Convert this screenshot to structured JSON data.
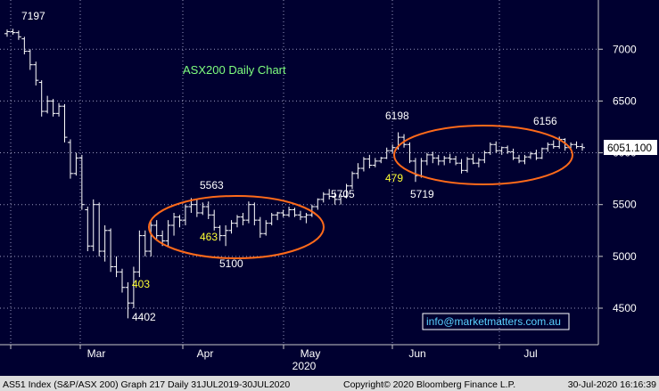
{
  "chart_data": {
    "type": "bar",
    "subtype": "ohlc",
    "title": "ASX200 Daily Chart",
    "x_ticks": [
      "Mar",
      "Apr",
      "May",
      "Jun",
      "Jul"
    ],
    "x_year": "2020",
    "y_ticks": [
      4500,
      5000,
      5500,
      6000,
      6500,
      7000
    ],
    "ylim": [
      4250,
      7400
    ],
    "grid": true,
    "last_price": "6051.100",
    "watermark": "info@marketmatters.com.au",
    "footer": {
      "left": "AS51 Index (S&P/ASX 200) Graph 217  Daily 31JUL2019-30JUL2020",
      "center": "Copyright© 2020 Bloomberg Finance L.P.",
      "right": "30-Jul-2020 16:16:39"
    },
    "annotations": [
      {
        "text": "7197",
        "color": "#ffffff"
      },
      {
        "text": "4402",
        "color": "#ffffff"
      },
      {
        "text": "403",
        "color": "#ffff33"
      },
      {
        "text": "5563",
        "color": "#ffffff"
      },
      {
        "text": "463",
        "color": "#ffff33"
      },
      {
        "text": "5100",
        "color": "#ffffff"
      },
      {
        "text": "5705",
        "color": "#ffffff"
      },
      {
        "text": "6198",
        "color": "#ffffff"
      },
      {
        "text": "479",
        "color": "#ffff33"
      },
      {
        "text": "5719",
        "color": "#ffffff"
      },
      {
        "text": "6156",
        "color": "#ffffff"
      }
    ],
    "series": [
      {
        "values": [
          [
            7150,
            7190,
            7120,
            7170
          ],
          [
            7170,
            7197,
            7140,
            7160
          ],
          [
            7160,
            7180,
            7090,
            7120
          ],
          [
            7100,
            7120,
            6950,
            6980
          ],
          [
            6980,
            7000,
            6800,
            6850
          ],
          [
            6850,
            6880,
            6650,
            6700
          ],
          [
            6680,
            6700,
            6350,
            6400
          ],
          [
            6400,
            6550,
            6380,
            6500
          ],
          [
            6500,
            6520,
            6350,
            6380
          ],
          [
            6380,
            6480,
            6350,
            6450
          ],
          [
            6450,
            6470,
            6100,
            6150
          ],
          [
            6100,
            6130,
            5750,
            5800
          ],
          [
            5800,
            6000,
            5780,
            5950
          ],
          [
            5950,
            5980,
            5450,
            5500
          ],
          [
            5450,
            5480,
            5050,
            5100
          ],
          [
            5100,
            5550,
            5050,
            5500
          ],
          [
            5500,
            5520,
            5000,
            5050
          ],
          [
            5050,
            5300,
            4950,
            5250
          ],
          [
            5250,
            5270,
            4850,
            4900
          ],
          [
            4900,
            5000,
            4800,
            4850
          ],
          [
            4850,
            4880,
            4650,
            4700
          ],
          [
            4700,
            4750,
            4402,
            4550
          ],
          [
            4550,
            4900,
            4500,
            4850
          ],
          [
            4850,
            5250,
            4800,
            5200
          ],
          [
            5200,
            5250,
            5000,
            5050
          ],
          [
            5050,
            5350,
            5000,
            5300
          ],
          [
            5300,
            5350,
            5150,
            5200
          ],
          [
            5200,
            5250,
            5100,
            5150
          ],
          [
            5150,
            5350,
            5100,
            5300
          ],
          [
            5300,
            5420,
            5200,
            5380
          ],
          [
            5380,
            5400,
            5280,
            5350
          ],
          [
            5350,
            5500,
            5300,
            5480
          ],
          [
            5480,
            5563,
            5420,
            5500
          ],
          [
            5500,
            5550,
            5380,
            5420
          ],
          [
            5420,
            5520,
            5400,
            5480
          ],
          [
            5480,
            5530,
            5360,
            5400
          ],
          [
            5400,
            5450,
            5250,
            5280
          ],
          [
            5280,
            5300,
            5150,
            5200
          ],
          [
            5200,
            5300,
            5100,
            5250
          ],
          [
            5250,
            5350,
            5220,
            5320
          ],
          [
            5320,
            5400,
            5280,
            5380
          ],
          [
            5380,
            5420,
            5300,
            5350
          ],
          [
            5350,
            5530,
            5320,
            5500
          ],
          [
            5500,
            5520,
            5300,
            5350
          ],
          [
            5350,
            5380,
            5180,
            5220
          ],
          [
            5220,
            5350,
            5200,
            5320
          ],
          [
            5320,
            5420,
            5300,
            5400
          ],
          [
            5400,
            5430,
            5350,
            5420
          ],
          [
            5420,
            5450,
            5380,
            5400
          ],
          [
            5400,
            5480,
            5380,
            5450
          ],
          [
            5450,
            5470,
            5380,
            5400
          ],
          [
            5400,
            5440,
            5350,
            5380
          ],
          [
            5380,
            5420,
            5320,
            5400
          ],
          [
            5400,
            5500,
            5380,
            5480
          ],
          [
            5480,
            5560,
            5450,
            5550
          ],
          [
            5550,
            5620,
            5520,
            5600
          ],
          [
            5600,
            5650,
            5550,
            5580
          ],
          [
            5580,
            5620,
            5500,
            5550
          ],
          [
            5550,
            5600,
            5500,
            5580
          ],
          [
            5580,
            5700,
            5560,
            5680
          ],
          [
            5680,
            5820,
            5650,
            5800
          ],
          [
            5800,
            5900,
            5750,
            5850
          ],
          [
            5850,
            5960,
            5820,
            5940
          ],
          [
            5940,
            5980,
            5850,
            5880
          ],
          [
            5880,
            5950,
            5860,
            5920
          ],
          [
            5920,
            5960,
            5900,
            5950
          ],
          [
            5950,
            6050,
            5940,
            6020
          ],
          [
            6020,
            6080,
            6000,
            6050
          ],
          [
            6050,
            6198,
            6030,
            6150
          ],
          [
            6150,
            6180,
            6050,
            6080
          ],
          [
            6080,
            6100,
            5900,
            5920
          ],
          [
            5920,
            5950,
            5719,
            5780
          ],
          [
            5780,
            5950,
            5760,
            5920
          ],
          [
            5920,
            6000,
            5880,
            5980
          ],
          [
            5980,
            6010,
            5900,
            5950
          ],
          [
            5950,
            5980,
            5880,
            5920
          ],
          [
            5920,
            5970,
            5880,
            5950
          ],
          [
            5950,
            5990,
            5900,
            5940
          ],
          [
            5940,
            5970,
            5880,
            5900
          ],
          [
            5900,
            5940,
            5800,
            5830
          ],
          [
            5830,
            5960,
            5810,
            5940
          ],
          [
            5940,
            5990,
            5890,
            5900
          ],
          [
            5900,
            5950,
            5860,
            5930
          ],
          [
            5930,
            6020,
            5900,
            6000
          ],
          [
            6000,
            6100,
            5980,
            6080
          ],
          [
            6080,
            6110,
            6000,
            6020
          ],
          [
            6020,
            6060,
            5980,
            6050
          ],
          [
            6050,
            6070,
            5990,
            6010
          ],
          [
            6010,
            6040,
            5930,
            5950
          ],
          [
            5950,
            5980,
            5900,
            5920
          ],
          [
            5920,
            5980,
            5890,
            5960
          ],
          [
            5960,
            6010,
            5940,
            5990
          ],
          [
            5990,
            6030,
            5930,
            5950
          ],
          [
            5950,
            6050,
            5940,
            6040
          ],
          [
            6040,
            6100,
            6010,
            6080
          ],
          [
            6080,
            6120,
            6040,
            6060
          ],
          [
            6060,
            6156,
            6040,
            6130
          ],
          [
            6130,
            6140,
            6020,
            6050
          ],
          [
            6050,
            6100,
            6030,
            6080
          ],
          [
            6080,
            6110,
            6040,
            6060
          ],
          [
            6060,
            6090,
            6020,
            6050
          ]
        ]
      }
    ]
  }
}
